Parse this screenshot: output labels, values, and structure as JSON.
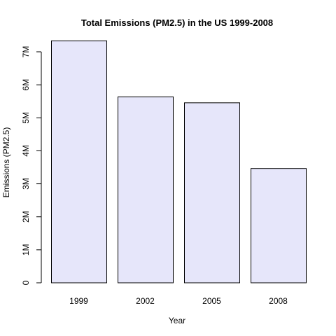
{
  "chart_data": {
    "type": "bar",
    "title": "Total Emissions (PM2.5) in the US 1999-2008",
    "xlabel": "Year",
    "ylabel": "Emissions (PM2.5)",
    "categories": [
      "1999",
      "2002",
      "2005",
      "2008"
    ],
    "values": [
      7332967,
      5635780,
      5454703,
      3464206
    ],
    "ylim": [
      0,
      7500000
    ],
    "y_ticks": [
      0,
      1000000,
      2000000,
      3000000,
      4000000,
      5000000,
      6000000,
      7000000
    ],
    "y_tick_labels": [
      "0",
      "1M",
      "2M",
      "3M",
      "4M",
      "5M",
      "6M",
      "7M"
    ],
    "grid": false,
    "legend": "none",
    "colors": {
      "bar_fill": "#E6E6FA",
      "bar_stroke": "#000000",
      "axis": "#000000"
    }
  }
}
